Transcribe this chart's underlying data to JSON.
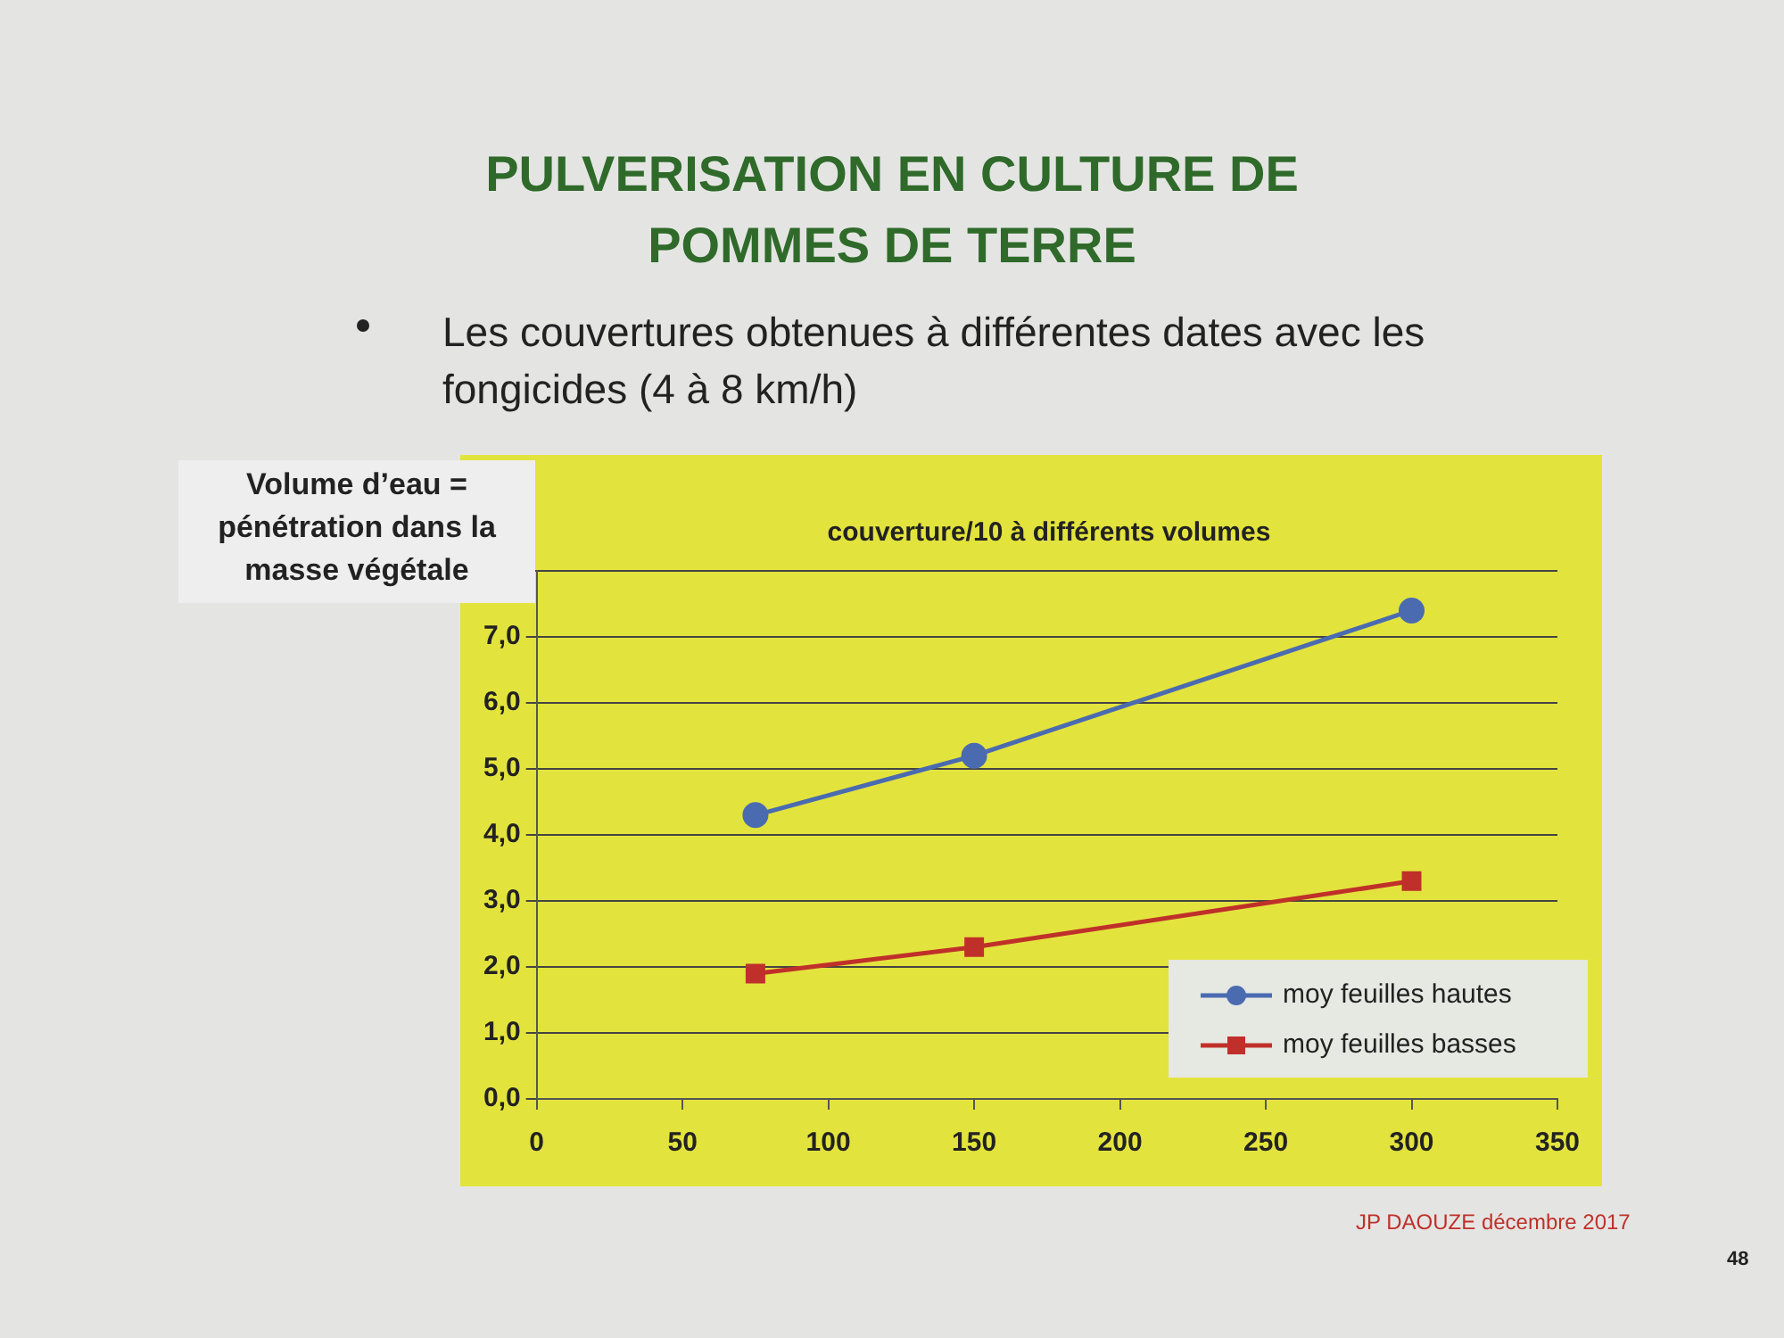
{
  "chart_data": {
    "type": "line",
    "title": "PULVERISATION EN CULTURE DE POMMES DE TERRE",
    "subtitle": "Les couvertures obtenues à différentes dates avec les fongicides (4 à 8 km/h)",
    "annotations": [
      "couverture/10 à différents volumes",
      "Volume d’eau = pénétration dans la masse végétale",
      "JP DAOUZE décembre 2017",
      "48"
    ],
    "x": [
      75,
      150,
      300
    ],
    "series": [
      {
        "name": "moy feuilles hautes",
        "color": "#4a6bb0",
        "values": [
          4.3,
          5.2,
          7.4
        ],
        "marker": "circle"
      },
      {
        "name": "moy feuilles basses",
        "color": "#c0302a",
        "values": [
          1.9,
          2.3,
          3.3
        ],
        "marker": "square"
      }
    ],
    "xlim": [
      0,
      350
    ],
    "xticks": [
      0,
      50,
      100,
      150,
      200,
      250,
      300,
      350
    ],
    "ylim": [
      0,
      8
    ],
    "yticks": [
      {
        "value": 0,
        "label": "0,0"
      },
      {
        "value": 1,
        "label": "1,0"
      },
      {
        "value": 2,
        "label": "2,0"
      },
      {
        "value": 3,
        "label": "3,0"
      },
      {
        "value": 4,
        "label": "4,0"
      },
      {
        "value": 5,
        "label": "5,0"
      },
      {
        "value": 6,
        "label": "6,0"
      },
      {
        "value": 7,
        "label": "7,0"
      },
      {
        "value": 8,
        "label": null
      }
    ],
    "grid": "y",
    "legend": "bottom right",
    "line_style": "solid"
  }
}
